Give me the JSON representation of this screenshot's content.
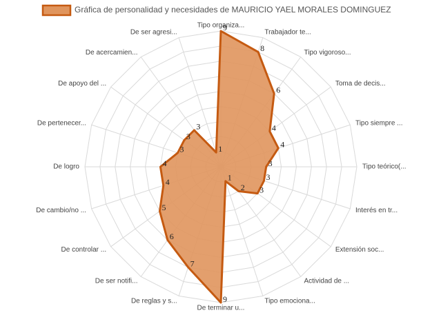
{
  "chart_data": {
    "type": "radar",
    "categories": [
      "Tipo organiza...",
      "Trabajador te...",
      "Tipo vigoroso...",
      "Toma de decis...",
      "Tipo siempre ...",
      "Tipo teórico(...",
      "Interés en tr...",
      "Extensión soc...",
      "Actividad de ...",
      "Tipo emociona...",
      "De terminar u...",
      "De reglas y s...",
      "De ser notifi...",
      "De controlar ...",
      "De cambio/no ...",
      "De logro",
      "De pertenecer...",
      "De apoyo del ...",
      "De acercamien...",
      "De ser agresi..."
    ],
    "series": [
      {
        "name": "Gráfica de personalidad y necesidades de MAURICIO YAEL MORALES DOMINGUEZ",
        "color": "#c55a11",
        "values": [
          9,
          8,
          6,
          4,
          4,
          3,
          3,
          3,
          2,
          1,
          9,
          7,
          6,
          5,
          4,
          4,
          3,
          3,
          3,
          1
        ]
      }
    ],
    "ylim": [
      0,
      9
    ],
    "yticks": [
      0,
      1,
      2,
      3,
      4,
      5,
      6,
      7,
      8,
      9
    ],
    "grid": true,
    "legend": "top"
  }
}
